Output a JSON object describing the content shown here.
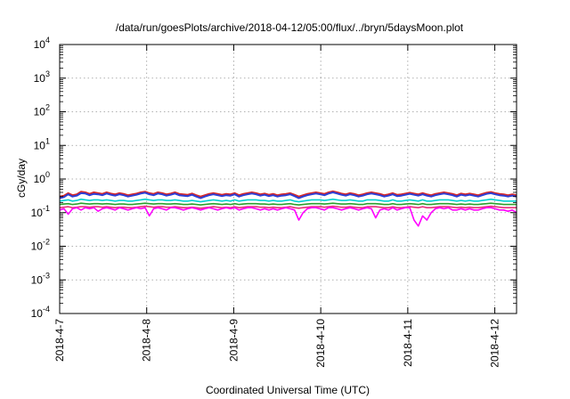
{
  "chart_data": {
    "type": "line",
    "title": "/data/run/goesPlots/archive/2018-04-12/05:00/flux/../bryn/5daysMoon.plot",
    "xlabel": "Coordinated Universal Time (UTC)",
    "ylabel": "cGy/day",
    "yscale": "log",
    "ylim": [
      0.0001,
      10000
    ],
    "xlim": [
      0,
      5.25
    ],
    "grid": true,
    "x_ticks": [
      {
        "label": "2018-4-7",
        "value": 0
      },
      {
        "label": "2018-4-8",
        "value": 1
      },
      {
        "label": "2018-4-9",
        "value": 2
      },
      {
        "label": "2018-4-10",
        "value": 3
      },
      {
        "label": "2018-4-11",
        "value": 4
      },
      {
        "label": "2018-4-12",
        "value": 5
      }
    ],
    "y_ticks": [
      {
        "base": "10",
        "exp": "-4",
        "value": 0.0001
      },
      {
        "base": "10",
        "exp": "-3",
        "value": 0.001
      },
      {
        "base": "10",
        "exp": "-2",
        "value": 0.01
      },
      {
        "base": "10",
        "exp": "-1",
        "value": 0.1
      },
      {
        "base": "10",
        "exp": "0",
        "value": 1
      },
      {
        "base": "10",
        "exp": "1",
        "value": 10
      },
      {
        "base": "10",
        "exp": "2",
        "value": 100
      },
      {
        "base": "10",
        "exp": "3",
        "value": 1000
      },
      {
        "base": "10",
        "exp": "4",
        "value": 10000
      }
    ],
    "series": [
      {
        "color": "#d62728",
        "values": [
          0.3,
          0.32,
          0.38,
          0.33,
          0.35,
          0.42,
          0.4,
          0.36,
          0.4,
          0.38,
          0.36,
          0.4,
          0.37,
          0.35,
          0.38,
          0.36,
          0.33,
          0.35,
          0.37,
          0.4,
          0.42,
          0.38,
          0.36,
          0.4,
          0.38,
          0.35,
          0.37,
          0.4,
          0.36,
          0.35,
          0.34,
          0.37,
          0.33,
          0.3,
          0.33,
          0.36,
          0.38,
          0.36,
          0.34,
          0.36,
          0.35,
          0.38,
          0.33,
          0.36,
          0.38,
          0.4,
          0.38,
          0.35,
          0.37,
          0.34,
          0.36,
          0.33,
          0.35,
          0.36,
          0.38,
          0.34,
          0.3,
          0.33,
          0.36,
          0.38,
          0.4,
          0.38,
          0.36,
          0.4,
          0.43,
          0.4,
          0.37,
          0.35,
          0.38,
          0.36,
          0.33,
          0.35,
          0.38,
          0.4,
          0.38,
          0.36,
          0.33,
          0.35,
          0.38,
          0.34,
          0.35,
          0.37,
          0.39,
          0.37,
          0.35,
          0.38,
          0.35,
          0.33,
          0.36,
          0.38,
          0.4,
          0.38,
          0.36,
          0.33,
          0.37,
          0.35,
          0.37,
          0.35,
          0.33,
          0.36,
          0.39,
          0.41,
          0.38,
          0.36,
          0.35,
          0.33,
          0.35,
          0.33
        ]
      },
      {
        "color": "#2c3fd6",
        "values": [
          0.27,
          0.29,
          0.35,
          0.3,
          0.32,
          0.38,
          0.37,
          0.33,
          0.36,
          0.35,
          0.33,
          0.37,
          0.34,
          0.32,
          0.35,
          0.33,
          0.3,
          0.32,
          0.34,
          0.37,
          0.39,
          0.35,
          0.33,
          0.37,
          0.35,
          0.32,
          0.34,
          0.37,
          0.33,
          0.32,
          0.31,
          0.34,
          0.3,
          0.27,
          0.3,
          0.33,
          0.35,
          0.33,
          0.31,
          0.33,
          0.32,
          0.35,
          0.3,
          0.33,
          0.35,
          0.37,
          0.35,
          0.32,
          0.34,
          0.31,
          0.33,
          0.3,
          0.32,
          0.33,
          0.35,
          0.31,
          0.27,
          0.3,
          0.33,
          0.35,
          0.37,
          0.35,
          0.33,
          0.37,
          0.4,
          0.37,
          0.34,
          0.32,
          0.35,
          0.33,
          0.3,
          0.32,
          0.35,
          0.37,
          0.35,
          0.33,
          0.3,
          0.32,
          0.35,
          0.31,
          0.32,
          0.34,
          0.36,
          0.34,
          0.32,
          0.35,
          0.32,
          0.3,
          0.33,
          0.35,
          0.37,
          0.35,
          0.33,
          0.3,
          0.34,
          0.32,
          0.34,
          0.32,
          0.3,
          0.33,
          0.36,
          0.38,
          0.35,
          0.33,
          0.32,
          0.3,
          0.32,
          0.3
        ]
      },
      {
        "color": "#00d0d0",
        "values": [
          0.22,
          0.23,
          0.24,
          0.22,
          0.23,
          0.25,
          0.24,
          0.23,
          0.24,
          0.24,
          0.23,
          0.24,
          0.23,
          0.22,
          0.23,
          0.23,
          0.22,
          0.22,
          0.23,
          0.24,
          0.25,
          0.24,
          0.23,
          0.24,
          0.24,
          0.23,
          0.23,
          0.24,
          0.23,
          0.22,
          0.22,
          0.23,
          0.22,
          0.21,
          0.22,
          0.23,
          0.24,
          0.23,
          0.22,
          0.23,
          0.22,
          0.24,
          0.22,
          0.23,
          0.24,
          0.24,
          0.24,
          0.23,
          0.23,
          0.22,
          0.23,
          0.22,
          0.22,
          0.23,
          0.24,
          0.22,
          0.21,
          0.22,
          0.23,
          0.24,
          0.24,
          0.24,
          0.23,
          0.24,
          0.25,
          0.24,
          0.23,
          0.23,
          0.24,
          0.23,
          0.22,
          0.22,
          0.24,
          0.24,
          0.24,
          0.23,
          0.22,
          0.22,
          0.24,
          0.22,
          0.22,
          0.23,
          0.24,
          0.23,
          0.22,
          0.24,
          0.22,
          0.22,
          0.23,
          0.24,
          0.24,
          0.24,
          0.23,
          0.22,
          0.23,
          0.22,
          0.23,
          0.22,
          0.22,
          0.23,
          0.24,
          0.25,
          0.24,
          0.23,
          0.22,
          0.22,
          0.22,
          0.22
        ]
      },
      {
        "color": "#2ca02c",
        "values": [
          0.175,
          0.18,
          0.185,
          0.175,
          0.18,
          0.19,
          0.185,
          0.18,
          0.185,
          0.185,
          0.18,
          0.185,
          0.18,
          0.175,
          0.18,
          0.18,
          0.175,
          0.175,
          0.18,
          0.185,
          0.19,
          0.185,
          0.18,
          0.185,
          0.185,
          0.18,
          0.18,
          0.185,
          0.18,
          0.175,
          0.175,
          0.18,
          0.175,
          0.17,
          0.175,
          0.18,
          0.185,
          0.18,
          0.175,
          0.18,
          0.175,
          0.185,
          0.175,
          0.18,
          0.185,
          0.185,
          0.185,
          0.18,
          0.18,
          0.175,
          0.18,
          0.175,
          0.175,
          0.18,
          0.185,
          0.175,
          0.17,
          0.175,
          0.18,
          0.185,
          0.185,
          0.185,
          0.18,
          0.185,
          0.19,
          0.185,
          0.18,
          0.18,
          0.185,
          0.18,
          0.175,
          0.175,
          0.185,
          0.185,
          0.185,
          0.18,
          0.175,
          0.175,
          0.185,
          0.175,
          0.175,
          0.18,
          0.185,
          0.18,
          0.175,
          0.185,
          0.175,
          0.175,
          0.18,
          0.185,
          0.185,
          0.185,
          0.18,
          0.175,
          0.18,
          0.175,
          0.18,
          0.175,
          0.175,
          0.18,
          0.185,
          0.19,
          0.185,
          0.18,
          0.175,
          0.175,
          0.175,
          0.175
        ]
      },
      {
        "color": "#e8307a",
        "values": [
          0.14,
          0.145,
          0.15,
          0.14,
          0.145,
          0.15,
          0.15,
          0.145,
          0.15,
          0.15,
          0.145,
          0.15,
          0.145,
          0.14,
          0.145,
          0.145,
          0.14,
          0.14,
          0.145,
          0.15,
          0.155,
          0.15,
          0.145,
          0.15,
          0.15,
          0.145,
          0.145,
          0.15,
          0.145,
          0.14,
          0.14,
          0.145,
          0.14,
          0.135,
          0.14,
          0.145,
          0.15,
          0.145,
          0.14,
          0.145,
          0.14,
          0.15,
          0.14,
          0.145,
          0.15,
          0.15,
          0.15,
          0.145,
          0.145,
          0.14,
          0.145,
          0.14,
          0.14,
          0.145,
          0.15,
          0.14,
          0.135,
          0.14,
          0.145,
          0.15,
          0.15,
          0.15,
          0.145,
          0.15,
          0.155,
          0.15,
          0.145,
          0.145,
          0.15,
          0.145,
          0.14,
          0.14,
          0.15,
          0.15,
          0.15,
          0.145,
          0.14,
          0.14,
          0.15,
          0.14,
          0.14,
          0.145,
          0.15,
          0.145,
          0.14,
          0.15,
          0.14,
          0.14,
          0.145,
          0.15,
          0.15,
          0.15,
          0.145,
          0.14,
          0.145,
          0.14,
          0.145,
          0.14,
          0.14,
          0.145,
          0.15,
          0.155,
          0.15,
          0.145,
          0.14,
          0.14,
          0.14,
          0.14
        ]
      },
      {
        "color": "#ff00ff",
        "values": [
          0.12,
          0.13,
          0.09,
          0.13,
          0.14,
          0.12,
          0.14,
          0.13,
          0.14,
          0.11,
          0.13,
          0.14,
          0.13,
          0.12,
          0.14,
          0.13,
          0.12,
          0.13,
          0.14,
          0.13,
          0.14,
          0.08,
          0.13,
          0.14,
          0.13,
          0.12,
          0.14,
          0.14,
          0.13,
          0.12,
          0.13,
          0.14,
          0.13,
          0.12,
          0.13,
          0.14,
          0.13,
          0.12,
          0.13,
          0.14,
          0.13,
          0.14,
          0.12,
          0.13,
          0.14,
          0.14,
          0.13,
          0.12,
          0.13,
          0.12,
          0.13,
          0.12,
          0.13,
          0.14,
          0.13,
          0.12,
          0.06,
          0.1,
          0.13,
          0.14,
          0.14,
          0.13,
          0.12,
          0.14,
          0.14,
          0.13,
          0.12,
          0.13,
          0.14,
          0.13,
          0.12,
          0.13,
          0.14,
          0.13,
          0.07,
          0.12,
          0.13,
          0.12,
          0.14,
          0.12,
          0.13,
          0.14,
          0.14,
          0.06,
          0.04,
          0.08,
          0.06,
          0.1,
          0.13,
          0.14,
          0.13,
          0.14,
          0.12,
          0.12,
          0.13,
          0.12,
          0.13,
          0.12,
          0.12,
          0.13,
          0.14,
          0.14,
          0.13,
          0.12,
          0.12,
          0.11,
          0.12,
          0.1
        ]
      }
    ]
  }
}
